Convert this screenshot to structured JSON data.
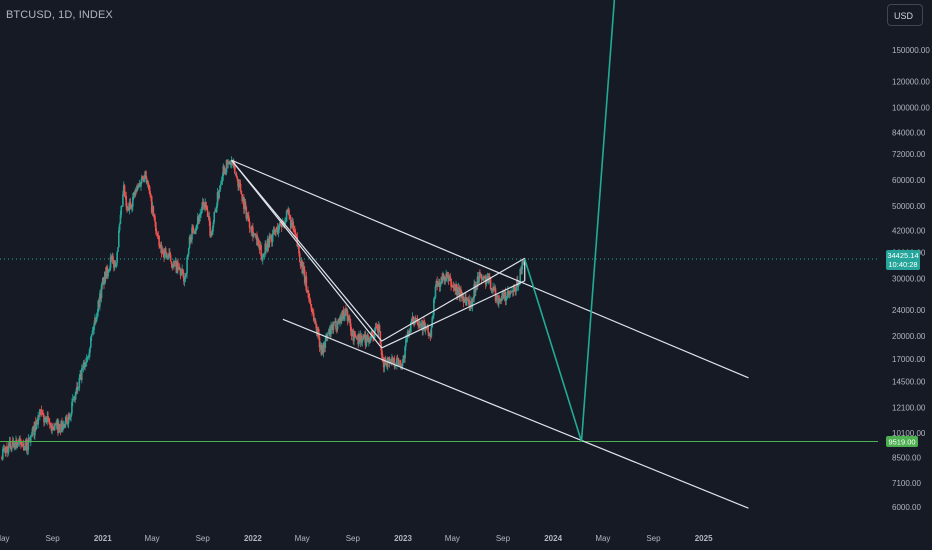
{
  "header": {
    "symbol_title": "BTCUSD, 1D, INDEX"
  },
  "toolbar": {
    "currency_label": "USD"
  },
  "colors": {
    "background": "#161a25",
    "up_candle": "#26a69a",
    "down_candle": "#ef5350",
    "trendline": "#e0e3eb",
    "projection": "#22ab94",
    "support": "#4caf50",
    "axis_text": "#b2b5be"
  },
  "price_badges": {
    "last_price": "34425.14",
    "countdown": "10:40:28",
    "support_level": "9519.00"
  },
  "chart_data": {
    "type": "candlestick",
    "title": "BTCUSD, 1D, INDEX",
    "y_scale": "log",
    "ylim": [
      5700,
      230000
    ],
    "xlim": [
      "2020-05-01",
      "2025-05-01"
    ],
    "y_ticks": [
      "150000.00",
      "120000.00",
      "100000.00",
      "84000.00",
      "72000.00",
      "60000.00",
      "50000.00",
      "42000.00",
      "36000.00",
      "30000.00",
      "24000.00",
      "20000.00",
      "17000.00",
      "14500.00",
      "12100.00",
      "10100.00",
      "8500.00",
      "7100.00",
      "6000.00"
    ],
    "x_ticks": [
      {
        "label": "May",
        "date": "2020-05-01",
        "bold": false
      },
      {
        "label": "Sep",
        "date": "2020-09-01",
        "bold": false
      },
      {
        "label": "2021",
        "date": "2021-01-01",
        "bold": true
      },
      {
        "label": "May",
        "date": "2021-05-01",
        "bold": false
      },
      {
        "label": "Sep",
        "date": "2021-09-01",
        "bold": false
      },
      {
        "label": "2022",
        "date": "2022-01-01",
        "bold": true
      },
      {
        "label": "May",
        "date": "2022-05-01",
        "bold": false
      },
      {
        "label": "Sep",
        "date": "2022-09-01",
        "bold": false
      },
      {
        "label": "2023",
        "date": "2023-01-01",
        "bold": true
      },
      {
        "label": "May",
        "date": "2023-05-01",
        "bold": false
      },
      {
        "label": "Sep",
        "date": "2023-09-01",
        "bold": false
      },
      {
        "label": "2024",
        "date": "2024-01-01",
        "bold": true
      },
      {
        "label": "May",
        "date": "2024-05-01",
        "bold": false
      },
      {
        "label": "Sep",
        "date": "2024-09-01",
        "bold": false
      },
      {
        "label": "2025",
        "date": "2025-01-01",
        "bold": true
      }
    ],
    "price_path": [
      [
        "2020-05-01",
        8800
      ],
      [
        "2020-06-01",
        9500
      ],
      [
        "2020-07-01",
        9200
      ],
      [
        "2020-08-01",
        11500
      ],
      [
        "2020-09-01",
        10500
      ],
      [
        "2020-10-01",
        10600
      ],
      [
        "2020-11-01",
        13800
      ],
      [
        "2020-12-01",
        19000
      ],
      [
        "2021-01-01",
        29000
      ],
      [
        "2021-01-20",
        34000
      ],
      [
        "2021-02-01",
        33000
      ],
      [
        "2021-02-21",
        56000
      ],
      [
        "2021-03-01",
        48000
      ],
      [
        "2021-04-14",
        64000
      ],
      [
        "2021-05-19",
        37000
      ],
      [
        "2021-06-01",
        36000
      ],
      [
        "2021-07-20",
        30000
      ],
      [
        "2021-08-01",
        40000
      ],
      [
        "2021-09-06",
        51000
      ],
      [
        "2021-09-21",
        41000
      ],
      [
        "2021-10-20",
        65000
      ],
      [
        "2021-11-10",
        68000
      ],
      [
        "2021-12-01",
        57000
      ],
      [
        "2021-12-15",
        48000
      ],
      [
        "2022-01-24",
        35000
      ],
      [
        "2022-02-01",
        38000
      ],
      [
        "2022-03-28",
        47000
      ],
      [
        "2022-04-15",
        40000
      ],
      [
        "2022-05-12",
        28000
      ],
      [
        "2022-06-18",
        18000
      ],
      [
        "2022-07-01",
        20000
      ],
      [
        "2022-08-15",
        24000
      ],
      [
        "2022-09-01",
        20000
      ],
      [
        "2022-10-01",
        19500
      ],
      [
        "2022-11-05",
        21000
      ],
      [
        "2022-11-10",
        16500
      ],
      [
        "2022-12-01",
        17000
      ],
      [
        "2022-12-31",
        16500
      ],
      [
        "2023-01-15",
        21000
      ],
      [
        "2023-02-01",
        23000
      ],
      [
        "2023-03-10",
        20000
      ],
      [
        "2023-03-20",
        28000
      ],
      [
        "2023-04-14",
        30500
      ],
      [
        "2023-05-01",
        28500
      ],
      [
        "2023-06-15",
        25000
      ],
      [
        "2023-07-01",
        30500
      ],
      [
        "2023-08-01",
        29200
      ],
      [
        "2023-08-18",
        26000
      ],
      [
        "2023-09-15",
        26500
      ],
      [
        "2023-10-01",
        27500
      ],
      [
        "2023-10-24",
        34425.14
      ]
    ],
    "drawings": [
      {
        "name": "upper-trendline",
        "from": [
          "2021-11-10",
          69000
        ],
        "to": [
          "2025-04-20",
          14900
        ]
      },
      {
        "name": "lower-channel-line",
        "from": [
          "2022-03-15",
          22500
        ],
        "to": [
          "2025-04-20",
          5950
        ]
      },
      {
        "name": "steep-trendline-a",
        "from": [
          "2021-11-10",
          69000
        ],
        "to": [
          "2022-11-10",
          19300
        ]
      },
      {
        "name": "steep-trendline-b",
        "from": [
          "2021-11-10",
          69000
        ],
        "to": [
          "2022-11-10",
          18400
        ]
      },
      {
        "name": "rising-channel-top",
        "from": [
          "2022-11-10",
          19300
        ],
        "to": [
          "2023-10-24",
          34600
        ]
      },
      {
        "name": "rising-channel-bottom",
        "from": [
          "2022-11-10",
          18400
        ],
        "to": [
          "2023-10-24",
          29500
        ]
      },
      {
        "name": "channel-right-edge",
        "from": [
          "2023-10-24",
          29500
        ],
        "to": [
          "2023-10-24",
          34600
        ]
      }
    ],
    "projection_path": [
      [
        "2023-10-24",
        34425.14
      ],
      [
        "2024-03-10",
        9519
      ],
      [
        "2024-06-01",
        240000
      ]
    ],
    "horizontal_levels": [
      {
        "name": "support-line",
        "value": 9519,
        "label": "9519.00"
      },
      {
        "name": "last-price-line",
        "value": 34425.14,
        "label": "34425.14",
        "sub_label": "10:40:28"
      }
    ]
  }
}
